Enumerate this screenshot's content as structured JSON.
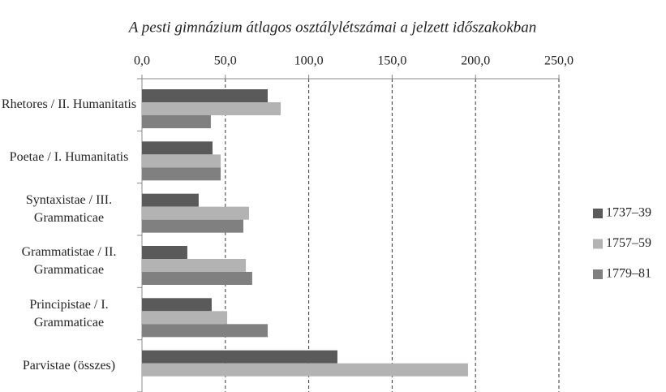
{
  "chart_data": {
    "type": "bar",
    "orientation": "horizontal",
    "title": "A pesti gimnázium átlagos osztálylétszámai a jelzett időszakokban",
    "categories": [
      "Rhetores / II. Humanitatis",
      "Poetae / I. Humanitatis",
      "Syntaxistae / III. Grammaticae",
      "Grammatistae / II. Grammaticae",
      "Principistae / I. Grammaticae",
      "Parvistae (összes)"
    ],
    "series": [
      {
        "name": "1737–39",
        "color": "#5a5a5a",
        "values": [
          75.4,
          42.3,
          34.0,
          27.2,
          41.8,
          117.2
        ]
      },
      {
        "name": "1757–59",
        "color": "#b3b3b3",
        "values": [
          83.2,
          47.2,
          64.2,
          62.3,
          51.1,
          195.5
        ]
      },
      {
        "name": "1779–81",
        "color": "#808080",
        "values": [
          41.3,
          47.2,
          60.8,
          66.1,
          75.4,
          null
        ]
      }
    ],
    "xlim": [
      0,
      250
    ],
    "xticks": [
      {
        "value": 0,
        "label": "0,0"
      },
      {
        "value": 50,
        "label": "50,0"
      },
      {
        "value": 100,
        "label": "100,0"
      },
      {
        "value": 150,
        "label": "150,0"
      },
      {
        "value": 200,
        "label": "200,0"
      },
      {
        "value": 250,
        "label": "250,0"
      }
    ],
    "grid": true,
    "legend": "right"
  }
}
